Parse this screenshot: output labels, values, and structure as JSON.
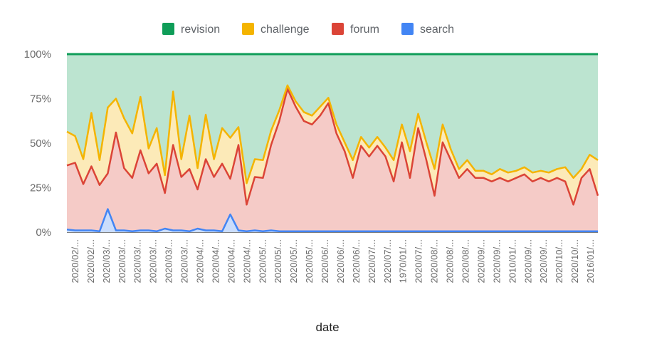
{
  "chart_data": {
    "type": "area",
    "stacked": "percent",
    "title": "",
    "xlabel": "date",
    "ylabel": "",
    "ylim": [
      0,
      100
    ],
    "yticks": [
      "0%",
      "25%",
      "50%",
      "75%",
      "100%"
    ],
    "legend_position": "top",
    "x_tick_labels": [
      "2020/02/...",
      "2020/02/...",
      "2020/03/...",
      "2020/03/...",
      "2020/03/...",
      "2020/03/...",
      "2020/03/...",
      "2020/03/...",
      "2020/04/...",
      "2020/04/...",
      "2020/04/...",
      "2020/04/...",
      "2020/05/...",
      "2020/05/...",
      "2020/05/...",
      "2020/05/...",
      "2020/06/...",
      "2020/06/...",
      "2020/06/...",
      "2020/07/...",
      "2020/07/...",
      "1970/01/...",
      "2020/07/...",
      "2020/08/...",
      "2020/08/...",
      "2020/08/...",
      "2020/09/...",
      "2020/09/...",
      "2010/01/...",
      "2020/09/...",
      "2020/09/...",
      "2020/10/...",
      "2020/10/...",
      "2016/01/..."
    ],
    "series": [
      {
        "name": "search",
        "color": "#4285f4",
        "values": [
          1.5,
          1,
          1,
          1,
          0.5,
          13,
          1,
          1,
          0.5,
          1,
          1,
          0.5,
          2,
          1,
          1,
          0.5,
          2,
          1,
          1,
          0.5,
          10,
          1,
          0.5,
          1,
          0.5,
          1,
          0.5,
          0.5,
          0.5,
          0.5,
          0.5,
          0.5,
          0.5,
          0.5,
          0.5,
          0.5,
          0.5,
          0.5,
          0.5,
          0.5,
          0.5,
          0.5,
          0.5,
          0.5,
          0.5,
          0.5,
          0.5,
          0.5,
          0.5,
          0.5,
          0.5,
          0.5,
          0.5,
          0.5,
          0.5,
          0.5,
          0.5,
          0.5,
          0.5,
          0.5,
          0.5,
          0.5,
          0.5,
          0.5,
          0.5,
          0.5
        ]
      },
      {
        "name": "forum",
        "color": "#db4437",
        "values": [
          36,
          38,
          26,
          36,
          26,
          20,
          55,
          35,
          30,
          45,
          32,
          38,
          20,
          48,
          30,
          35,
          22,
          40,
          30,
          38,
          20,
          48,
          15,
          30,
          30,
          48,
          62,
          80,
          70,
          62,
          60,
          65,
          72,
          55,
          45,
          30,
          48,
          42,
          48,
          42,
          28,
          50,
          30,
          58,
          40,
          20,
          50,
          40,
          30,
          35,
          30,
          30,
          28,
          30,
          28,
          30,
          32,
          28,
          30,
          28,
          30,
          28,
          15,
          30,
          35,
          20
        ]
      },
      {
        "name": "challenge",
        "color": "#f4b400",
        "values": [
          19,
          15,
          14,
          30,
          14,
          37,
          19,
          28,
          25,
          30,
          14,
          20,
          10,
          30,
          10,
          30,
          12,
          25,
          10,
          20,
          23,
          10,
          12,
          10,
          10,
          8,
          6,
          2,
          3,
          5,
          5,
          5,
          3,
          5,
          5,
          10,
          5,
          5,
          5,
          5,
          12,
          10,
          15,
          8,
          10,
          15,
          10,
          6,
          5,
          5,
          4,
          4,
          4,
          5,
          5,
          4,
          4,
          5,
          4,
          5,
          5,
          8,
          15,
          5,
          8,
          20
        ]
      },
      {
        "name": "revision",
        "color": "#0f9d58",
        "values": [
          43.5,
          46,
          59,
          33,
          59.5,
          30,
          25,
          36,
          44.5,
          24,
          53,
          41.5,
          68,
          21,
          59,
          34.5,
          64,
          34,
          59,
          41.5,
          47,
          41,
          72.5,
          59,
          59.5,
          43.5,
          31.5,
          17.5,
          26.5,
          32.5,
          34.5,
          29.5,
          24.5,
          39.5,
          49.5,
          59.5,
          46.5,
          52.5,
          46.5,
          52.5,
          59.5,
          39.5,
          54.5,
          33.5,
          49.5,
          64.5,
          39.5,
          53.5,
          64.5,
          59.5,
          65.5,
          65.5,
          67.5,
          64.5,
          66.5,
          65.5,
          63.5,
          66.5,
          65.5,
          66.5,
          64.5,
          63.5,
          84.5,
          64.5,
          56.5,
          79.5
        ]
      }
    ]
  }
}
